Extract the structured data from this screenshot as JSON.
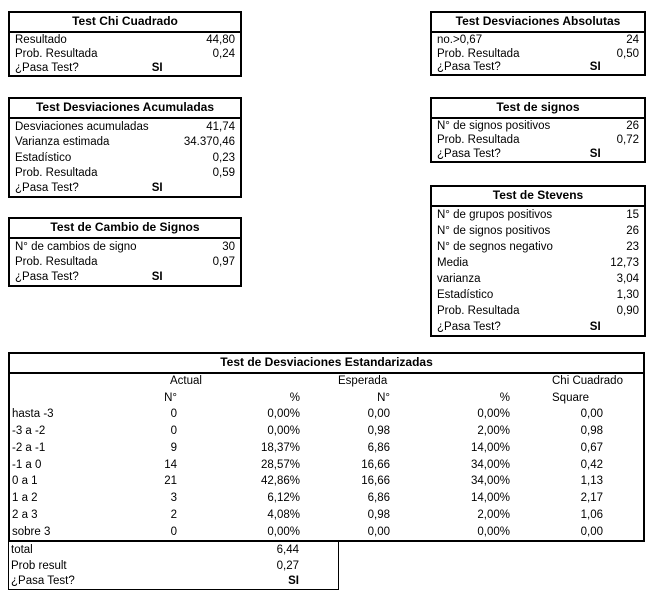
{
  "panels": [
    {
      "title": "Test Chi Cuadrado",
      "rows": [
        [
          "Resultado",
          "44,80"
        ],
        [
          "Prob. Resultada",
          "0,24"
        ]
      ],
      "pass": {
        "label": "¿Pasa Test?",
        "value": "SI"
      }
    },
    {
      "title": "Test Desviaciones Acumuladas",
      "rows": [
        [
          "Desviaciones acumuladas",
          "41,74"
        ],
        [
          "Varianza estimada",
          "34.370,46"
        ],
        [
          "Estadístico",
          "0,23"
        ],
        [
          "Prob. Resultada",
          "0,59"
        ]
      ],
      "pass": {
        "label": "¿Pasa Test?",
        "value": "SI"
      }
    },
    {
      "title": "Test de Cambio de Signos",
      "rows": [
        [
          "N° de cambios de signo",
          "30"
        ],
        [
          "Prob. Resultada",
          "0,97"
        ]
      ],
      "pass": {
        "label": "¿Pasa Test?",
        "value": "SI"
      }
    },
    {
      "title": "Test Desviaciones Absolutas",
      "rows": [
        [
          "no.>0,67",
          "24"
        ],
        [
          "Prob. Resultada",
          "0,50"
        ]
      ],
      "pass": {
        "label": "¿Pasa Test?",
        "value": "SI"
      }
    },
    {
      "title": "Test de signos",
      "rows": [
        [
          "N° de signos positivos",
          "26"
        ],
        [
          "Prob. Resultada",
          "0,72"
        ]
      ],
      "pass": {
        "label": "¿Pasa Test?",
        "value": "SI"
      }
    },
    {
      "title": "Test de Stevens",
      "rows": [
        [
          "N° de grupos positivos",
          "15"
        ],
        [
          "N° de signos positivos",
          "26"
        ],
        [
          "N° de segnos negativo",
          "23"
        ],
        [
          "Media",
          "12,73"
        ],
        [
          "varianza",
          "3,04"
        ],
        [
          "Estadístico",
          "1,30"
        ],
        [
          "Prob. Resultada",
          "0,90"
        ]
      ],
      "pass": {
        "label": "¿Pasa Test?",
        "value": "SI"
      }
    }
  ],
  "table": {
    "title": "Test de Desviaciones Estandarizadas",
    "group_headers": {
      "actual": "Actual",
      "esperada": "Esperada",
      "chi": "Chi Cuadrado"
    },
    "col_headers": {
      "n1": "N°",
      "p1": "%",
      "n2": "N°",
      "p2": "%",
      "square": "Square"
    },
    "rows": [
      {
        "label": "hasta -3",
        "values": [
          "0",
          "0,00%",
          "0,00",
          "0,00%",
          "0,00"
        ]
      },
      {
        "label": "-3 a -2",
        "values": [
          "0",
          "0,00%",
          "0,98",
          "2,00%",
          "0,98"
        ]
      },
      {
        "label": "-2 a -1",
        "values": [
          "9",
          "18,37%",
          "6,86",
          "14,00%",
          "0,67"
        ]
      },
      {
        "label": "-1 a 0",
        "values": [
          "14",
          "28,57%",
          "16,66",
          "34,00%",
          "0,42"
        ]
      },
      {
        "label": "0 a 1",
        "values": [
          "21",
          "42,86%",
          "16,66",
          "34,00%",
          "1,13"
        ]
      },
      {
        "label": "1 a 2",
        "values": [
          "3",
          "6,12%",
          "6,86",
          "14,00%",
          "2,17"
        ]
      },
      {
        "label": "2 a 3",
        "values": [
          "2",
          "4,08%",
          "0,98",
          "2,00%",
          "1,06"
        ]
      },
      {
        "label": "sobre 3",
        "values": [
          "0",
          "0,00%",
          "0,00",
          "0,00%",
          "0,00"
        ]
      }
    ],
    "footer": [
      {
        "label": "total",
        "value": "6,44",
        "bold": false
      },
      {
        "label": "Prob result",
        "value": "0,27",
        "bold": false
      },
      {
        "label": "¿Pasa Test?",
        "value": "SI",
        "bold": true
      }
    ]
  },
  "colors": {
    "border": "#000000",
    "text": "#000000",
    "background": "#ffffff"
  }
}
